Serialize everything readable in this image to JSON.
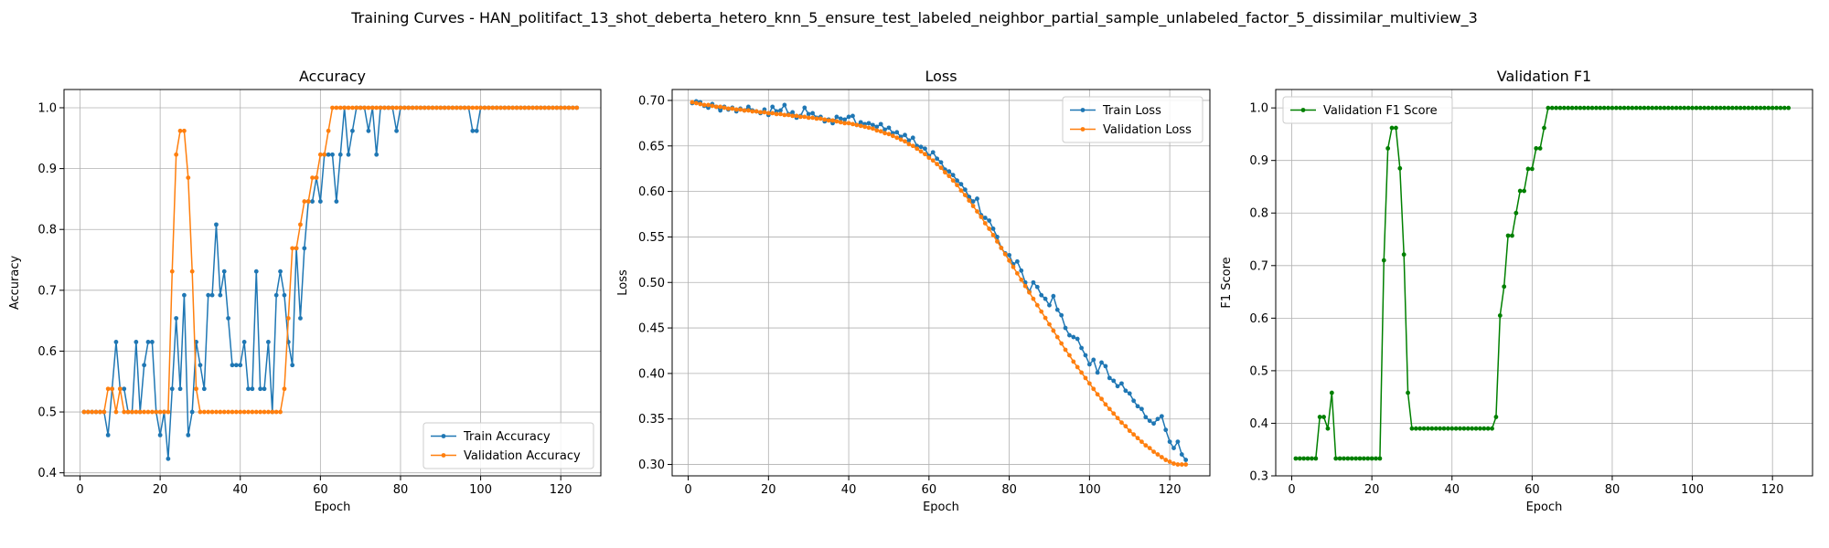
{
  "figure": {
    "suptitle": "Training Curves - HAN_politifact_13_shot_deberta_hetero_knn_5_ensure_test_labeled_neighbor_partial_sample_unlabeled_factor_5_dissimilar_multiview_3"
  },
  "chart_data": [
    {
      "type": "line",
      "title": "Accuracy",
      "xlabel": "Epoch",
      "ylabel": "Accuracy",
      "xlim": [
        -4,
        130
      ],
      "ylim": [
        0.395,
        1.03
      ],
      "xticks": [
        0,
        20,
        40,
        60,
        80,
        100,
        120
      ],
      "yticks": [
        0.4,
        0.5,
        0.6,
        0.7,
        0.8,
        0.9,
        1.0
      ],
      "ytick_labels": [
        "0.4",
        "0.5",
        "0.6",
        "0.7",
        "0.8",
        "0.9",
        "1.0"
      ],
      "grid": true,
      "legend": "lower-right",
      "series": [
        {
          "name": "Train Accuracy",
          "color": "#1f77b4",
          "x_start": 1,
          "values": [
            0.5,
            0.5,
            0.5,
            0.5,
            0.5,
            0.5,
            0.462,
            0.538,
            0.615,
            0.538,
            0.538,
            0.5,
            0.5,
            0.615,
            0.5,
            0.577,
            0.615,
            0.615,
            0.5,
            0.462,
            0.5,
            0.423,
            0.538,
            0.654,
            0.538,
            0.692,
            0.462,
            0.5,
            0.615,
            0.577,
            0.538,
            0.692,
            0.692,
            0.808,
            0.692,
            0.731,
            0.654,
            0.577,
            0.577,
            0.577,
            0.615,
            0.538,
            0.538,
            0.731,
            0.538,
            0.538,
            0.615,
            0.5,
            0.692,
            0.731,
            0.692,
            0.615,
            0.577,
            0.769,
            0.654,
            0.769,
            0.846,
            0.846,
            0.885,
            0.846,
            0.923,
            0.923,
            0.923,
            0.846,
            0.923,
            1.0,
            0.923,
            0.962,
            1.0,
            1.0,
            1.0,
            0.962,
            1.0,
            0.923,
            1.0,
            1.0,
            1.0,
            1.0,
            0.962,
            1.0,
            1.0,
            1.0,
            1.0,
            1.0,
            1.0,
            1.0,
            1.0,
            1.0,
            1.0,
            1.0,
            1.0,
            1.0,
            1.0,
            1.0,
            1.0,
            1.0,
            1.0,
            0.962,
            0.962,
            1.0,
            1.0,
            1.0,
            1.0,
            1.0,
            1.0,
            1.0,
            1.0,
            1.0,
            1.0,
            1.0,
            1.0,
            1.0,
            1.0,
            1.0,
            1.0,
            1.0,
            1.0,
            1.0,
            1.0,
            1.0,
            1.0,
            1.0,
            1.0,
            1.0
          ]
        },
        {
          "name": "Validation Accuracy",
          "color": "#ff7f0e",
          "x_start": 1,
          "values": [
            0.5,
            0.5,
            0.5,
            0.5,
            0.5,
            0.5,
            0.538,
            0.538,
            0.5,
            0.538,
            0.5,
            0.5,
            0.5,
            0.5,
            0.5,
            0.5,
            0.5,
            0.5,
            0.5,
            0.5,
            0.5,
            0.5,
            0.731,
            0.923,
            0.962,
            0.962,
            0.885,
            0.731,
            0.538,
            0.5,
            0.5,
            0.5,
            0.5,
            0.5,
            0.5,
            0.5,
            0.5,
            0.5,
            0.5,
            0.5,
            0.5,
            0.5,
            0.5,
            0.5,
            0.5,
            0.5,
            0.5,
            0.5,
            0.5,
            0.5,
            0.538,
            0.654,
            0.769,
            0.769,
            0.808,
            0.846,
            0.846,
            0.885,
            0.885,
            0.923,
            0.923,
            0.962,
            1.0,
            1.0,
            1.0,
            1.0,
            1.0,
            1.0,
            1.0,
            1.0,
            1.0,
            1.0,
            1.0,
            1.0,
            1.0,
            1.0,
            1.0,
            1.0,
            1.0,
            1.0,
            1.0,
            1.0,
            1.0,
            1.0,
            1.0,
            1.0,
            1.0,
            1.0,
            1.0,
            1.0,
            1.0,
            1.0,
            1.0,
            1.0,
            1.0,
            1.0,
            1.0,
            1.0,
            1.0,
            1.0,
            1.0,
            1.0,
            1.0,
            1.0,
            1.0,
            1.0,
            1.0,
            1.0,
            1.0,
            1.0,
            1.0,
            1.0,
            1.0,
            1.0,
            1.0,
            1.0,
            1.0,
            1.0,
            1.0,
            1.0,
            1.0,
            1.0,
            1.0,
            1.0
          ]
        }
      ]
    },
    {
      "type": "line",
      "title": "Loss",
      "xlabel": "Epoch",
      "ylabel": "Loss",
      "xlim": [
        -4,
        130
      ],
      "ylim": [
        0.2875,
        0.712
      ],
      "xticks": [
        0,
        20,
        40,
        60,
        80,
        100,
        120
      ],
      "yticks": [
        0.3,
        0.35,
        0.4,
        0.45,
        0.5,
        0.55,
        0.6,
        0.65,
        0.7
      ],
      "ytick_labels": [
        "0.30",
        "0.35",
        "0.40",
        "0.45",
        "0.50",
        "0.55",
        "0.60",
        "0.65",
        "0.70"
      ],
      "grid": true,
      "legend": "top-right",
      "series": [
        {
          "name": "Train Loss",
          "color": "#1f77b4",
          "x_start": 1,
          "values": [
            0.697,
            0.699,
            0.698,
            0.694,
            0.692,
            0.696,
            0.693,
            0.689,
            0.693,
            0.69,
            0.692,
            0.688,
            0.691,
            0.689,
            0.693,
            0.689,
            0.688,
            0.686,
            0.69,
            0.684,
            0.693,
            0.688,
            0.689,
            0.695,
            0.685,
            0.687,
            0.681,
            0.683,
            0.692,
            0.685,
            0.686,
            0.681,
            0.682,
            0.677,
            0.679,
            0.675,
            0.682,
            0.68,
            0.679,
            0.682,
            0.683,
            0.673,
            0.676,
            0.674,
            0.675,
            0.673,
            0.671,
            0.674,
            0.668,
            0.67,
            0.664,
            0.665,
            0.66,
            0.662,
            0.656,
            0.659,
            0.65,
            0.649,
            0.647,
            0.639,
            0.643,
            0.636,
            0.632,
            0.624,
            0.622,
            0.618,
            0.612,
            0.608,
            0.602,
            0.594,
            0.589,
            0.592,
            0.574,
            0.571,
            0.568,
            0.559,
            0.55,
            0.538,
            0.532,
            0.53,
            0.52,
            0.523,
            0.513,
            0.5,
            0.49,
            0.5,
            0.495,
            0.486,
            0.482,
            0.475,
            0.485,
            0.47,
            0.464,
            0.45,
            0.442,
            0.44,
            0.438,
            0.428,
            0.42,
            0.41,
            0.415,
            0.401,
            0.412,
            0.408,
            0.395,
            0.392,
            0.386,
            0.389,
            0.381,
            0.378,
            0.37,
            0.364,
            0.361,
            0.352,
            0.348,
            0.345,
            0.35,
            0.353,
            0.338,
            0.325,
            0.318,
            0.325,
            0.311,
            0.305
          ]
        },
        {
          "name": "Validation Loss",
          "color": "#ff7f0e",
          "x_start": 1,
          "values": [
            0.698,
            0.697,
            0.696,
            0.695,
            0.695,
            0.694,
            0.693,
            0.693,
            0.692,
            0.691,
            0.691,
            0.69,
            0.69,
            0.689,
            0.689,
            0.688,
            0.688,
            0.687,
            0.687,
            0.686,
            0.686,
            0.685,
            0.685,
            0.684,
            0.684,
            0.683,
            0.683,
            0.682,
            0.682,
            0.681,
            0.681,
            0.68,
            0.68,
            0.679,
            0.678,
            0.678,
            0.677,
            0.676,
            0.675,
            0.675,
            0.674,
            0.673,
            0.672,
            0.671,
            0.67,
            0.669,
            0.667,
            0.666,
            0.664,
            0.663,
            0.661,
            0.659,
            0.657,
            0.655,
            0.652,
            0.65,
            0.647,
            0.644,
            0.641,
            0.637,
            0.634,
            0.63,
            0.626,
            0.621,
            0.617,
            0.612,
            0.607,
            0.601,
            0.596,
            0.59,
            0.584,
            0.578,
            0.572,
            0.565,
            0.559,
            0.552,
            0.545,
            0.538,
            0.531,
            0.524,
            0.517,
            0.51,
            0.503,
            0.496,
            0.489,
            0.482,
            0.475,
            0.468,
            0.461,
            0.454,
            0.447,
            0.44,
            0.433,
            0.426,
            0.42,
            0.413,
            0.407,
            0.401,
            0.395,
            0.389,
            0.383,
            0.377,
            0.372,
            0.366,
            0.361,
            0.356,
            0.351,
            0.346,
            0.342,
            0.337,
            0.333,
            0.329,
            0.325,
            0.321,
            0.318,
            0.314,
            0.311,
            0.308,
            0.305,
            0.303,
            0.301,
            0.3,
            0.3,
            0.3
          ]
        }
      ]
    },
    {
      "type": "line",
      "title": "Validation F1",
      "xlabel": "Epoch",
      "ylabel": "F1 Score",
      "xlim": [
        -4,
        130
      ],
      "ylim": [
        0.3,
        1.035
      ],
      "xticks": [
        0,
        20,
        40,
        60,
        80,
        100,
        120
      ],
      "yticks": [
        0.3,
        0.4,
        0.5,
        0.6,
        0.7,
        0.8,
        0.9,
        1.0
      ],
      "ytick_labels": [
        "0.3",
        "0.4",
        "0.5",
        "0.6",
        "0.7",
        "0.8",
        "0.9",
        "1.0"
      ],
      "grid": true,
      "legend": "top-left",
      "series": [
        {
          "name": "Validation F1 Score",
          "color": "#008000",
          "x_start": 1,
          "values": [
            0.333,
            0.333,
            0.333,
            0.333,
            0.333,
            0.333,
            0.412,
            0.412,
            0.39,
            0.458,
            0.333,
            0.333,
            0.333,
            0.333,
            0.333,
            0.333,
            0.333,
            0.333,
            0.333,
            0.333,
            0.333,
            0.333,
            0.71,
            0.923,
            0.962,
            0.962,
            0.885,
            0.721,
            0.458,
            0.39,
            0.39,
            0.39,
            0.39,
            0.39,
            0.39,
            0.39,
            0.39,
            0.39,
            0.39,
            0.39,
            0.39,
            0.39,
            0.39,
            0.39,
            0.39,
            0.39,
            0.39,
            0.39,
            0.39,
            0.39,
            0.412,
            0.605,
            0.66,
            0.757,
            0.757,
            0.8,
            0.842,
            0.842,
            0.884,
            0.884,
            0.923,
            0.923,
            0.962,
            1.0,
            1.0,
            1.0,
            1.0,
            1.0,
            1.0,
            1.0,
            1.0,
            1.0,
            1.0,
            1.0,
            1.0,
            1.0,
            1.0,
            1.0,
            1.0,
            1.0,
            1.0,
            1.0,
            1.0,
            1.0,
            1.0,
            1.0,
            1.0,
            1.0,
            1.0,
            1.0,
            1.0,
            1.0,
            1.0,
            1.0,
            1.0,
            1.0,
            1.0,
            1.0,
            1.0,
            1.0,
            1.0,
            1.0,
            1.0,
            1.0,
            1.0,
            1.0,
            1.0,
            1.0,
            1.0,
            1.0,
            1.0,
            1.0,
            1.0,
            1.0,
            1.0,
            1.0,
            1.0,
            1.0,
            1.0,
            1.0,
            1.0,
            1.0,
            1.0,
            1.0
          ]
        }
      ]
    }
  ]
}
